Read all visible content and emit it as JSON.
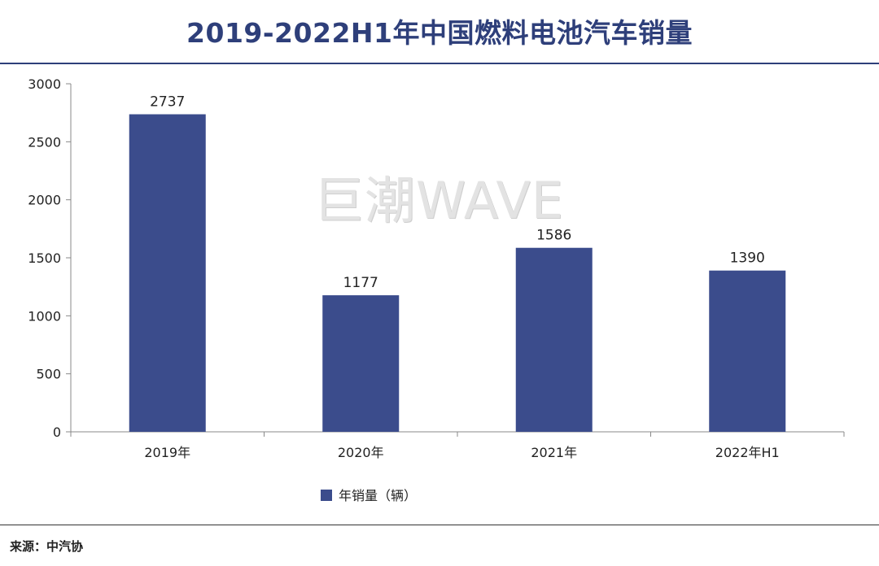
{
  "title": "2019-2022H1年中国燃料电池汽车销量",
  "watermark": "巨潮WAVE",
  "source": "来源：中汽协",
  "colors": {
    "bar": "#3b4c8c",
    "title": "#2e3f7a",
    "axis": "#888888"
  },
  "chart_data": {
    "type": "bar",
    "title": "2019-2022H1年中国燃料电池汽车销量",
    "categories": [
      "2019年",
      "2020年",
      "2021年",
      "2022年H1"
    ],
    "series": [
      {
        "name": "年销量（辆）",
        "values": [
          2737,
          1177,
          1586,
          1390
        ]
      }
    ],
    "ylim": [
      0,
      3000
    ],
    "yticks": [
      "0",
      "500",
      "1000",
      "1500",
      "2000",
      "2500",
      "3000"
    ],
    "xlabel": "",
    "ylabel": "",
    "grid": false,
    "legend": "bottom-center"
  }
}
